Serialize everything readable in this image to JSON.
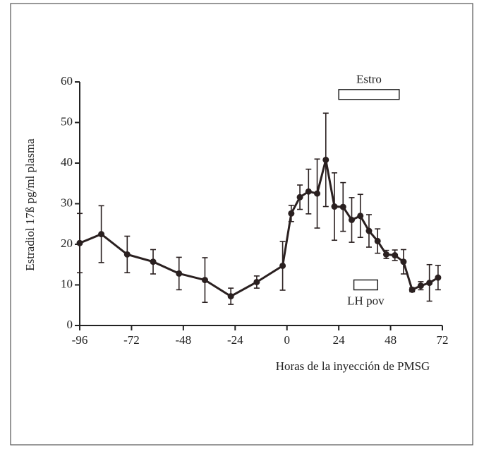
{
  "chart_data": {
    "type": "line",
    "x_label": "Horas de la inyección de PMSG",
    "y_label": "Estradiol 17ß  pg/ml  plasma",
    "x": [
      -96,
      -86,
      -74,
      -62,
      -50,
      -38,
      -26,
      -14,
      -2,
      2,
      6,
      10,
      14,
      18,
      22,
      26,
      30,
      34,
      38,
      42,
      46,
      50,
      54,
      58,
      62,
      66,
      70
    ],
    "series": [
      {
        "color": "#2a2020",
        "values": [
          20.3,
          22.5,
          17.5,
          15.7,
          12.8,
          11.2,
          7.2,
          10.7,
          14.7,
          27.6,
          31.6,
          33,
          32.5,
          40.8,
          29.3,
          29.2,
          26,
          27,
          23.3,
          20.8,
          17.5,
          17.3,
          15.7,
          8.8,
          9.8,
          10.5,
          11.8
        ],
        "errors": [
          7.3,
          7,
          4.5,
          3,
          4,
          5.5,
          2,
          1.5,
          6,
          2,
          3,
          5.5,
          8.5,
          11.5,
          8.3,
          6,
          5.5,
          5.3,
          4,
          3,
          1,
          1.3,
          3,
          0.5,
          1,
          4.5,
          3
        ]
      }
    ],
    "xlim": [
      -96,
      72
    ],
    "xticks": [
      -96,
      -72,
      -48,
      -24,
      0,
      24,
      48,
      72
    ],
    "ylim": [
      0,
      60
    ],
    "yticks": [
      0,
      10,
      20,
      30,
      40,
      50,
      60
    ],
    "annotations": [
      {
        "label": "Estro",
        "x": [
          24,
          52
        ],
        "y": 56.9
      },
      {
        "label": "LH pov",
        "x": [
          31,
          42
        ],
        "y": 10
      }
    ]
  }
}
